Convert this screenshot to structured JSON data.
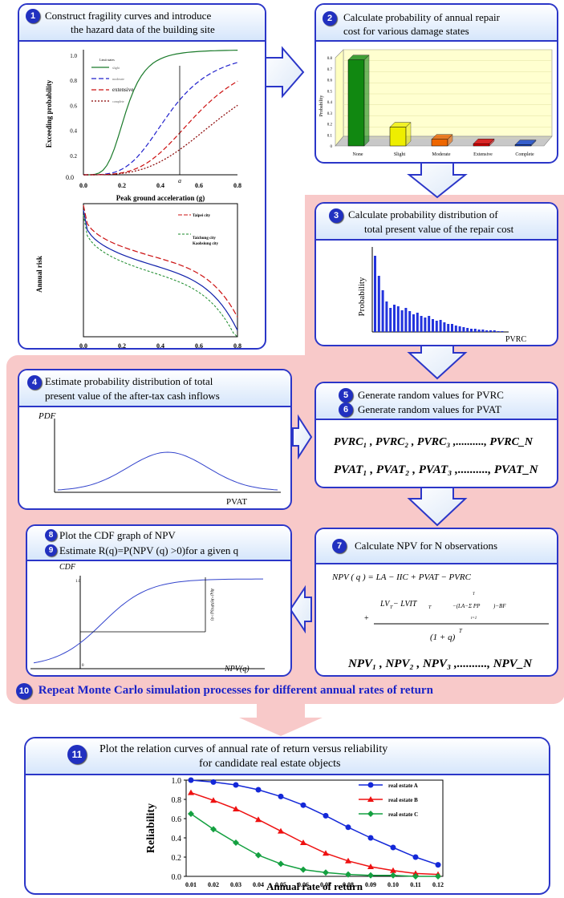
{
  "steps": {
    "s1": {
      "num": "1",
      "line1": "Construct fragility curves and introduce",
      "line2": "the hazard data of the building site"
    },
    "s2": {
      "num": "2",
      "line1": "Calculate probability of annual repair",
      "line2": "cost for various damage states"
    },
    "s3": {
      "num": "3",
      "line1": "Calculate probability distribution of",
      "line2": "total present value of the repair cost"
    },
    "s4": {
      "num": "4",
      "line1": "Estimate probability distribution of total",
      "line2": "present value of the after-tax cash inflows"
    },
    "s5": {
      "num": "5",
      "text": "Generate random values for PVRC"
    },
    "s6": {
      "num": "6",
      "text": "Generate random values for PVAT"
    },
    "s7": {
      "num": "7",
      "text": "Calculate NPV for N observations"
    },
    "s8": {
      "num": "8",
      "text": "Plot the CDF graph of NPV"
    },
    "s9": {
      "num": "9",
      "text": "Estimate R(q)=P(NPV (q) >0)for a given q"
    },
    "s10": {
      "num": "10",
      "text": "Repeat Monte Carlo simulation processes for different annual rates of return"
    },
    "s11": {
      "num": "11",
      "line1": "Plot the relation curves of annual rate of return versus reliability",
      "line2": "for candidate real estate objects"
    }
  },
  "fragility": {
    "ylabel": "Exceeding probability",
    "xlabel": "Peak ground acceleration (g)",
    "xticks": [
      "0.0",
      "0.2",
      "0.4",
      "0.6",
      "0.8"
    ],
    "yticks": [
      "1.0",
      "0.8",
      "0.6",
      "0.4",
      "0.2",
      "0.0"
    ],
    "legend_title": "Limit states",
    "legend": [
      "slight",
      "moderate",
      "extensive",
      "complete"
    ],
    "ai_label": "a",
    "colors": {
      "slight": "#1a7a2a",
      "moderate": "#2020cc",
      "extensive": "#cc1010",
      "complete": "#880000"
    }
  },
  "hazard": {
    "ylabel": "Annual risk",
    "xlabel": "Peak ground acceleration (g)",
    "xticks": [
      "0.0",
      "0.2",
      "0.4",
      "0.6",
      "0.8"
    ],
    "legend": [
      "Taipei city",
      "Taichung city",
      "Kaohsiung city"
    ]
  },
  "chart_data": [
    {
      "type": "bar",
      "title": "",
      "ylabel": "Probability",
      "categories": [
        "None",
        "Slight",
        "Moderate",
        "Extensive",
        "Complete"
      ],
      "values": [
        0.78,
        0.17,
        0.06,
        0.02,
        0.01
      ],
      "ylim": [
        0,
        0.8
      ],
      "yticks": [
        "0",
        "0.1",
        "0.2",
        "0.3",
        "0.4",
        "0.5",
        "0.6",
        "0.7",
        "0.8"
      ],
      "colors": [
        "#118811",
        "#eeee00",
        "#ee6600",
        "#dd0000",
        "#1144cc"
      ]
    },
    {
      "type": "bar",
      "ylabel": "Probability",
      "xlabel": "PVRC",
      "values": [
        0.95,
        0.7,
        0.52,
        0.38,
        0.3,
        0.34,
        0.32,
        0.27,
        0.3,
        0.26,
        0.22,
        0.24,
        0.2,
        0.18,
        0.2,
        0.16,
        0.14,
        0.15,
        0.12,
        0.1,
        0.1,
        0.08,
        0.07,
        0.06,
        0.05,
        0.04,
        0.04,
        0.03,
        0.03,
        0.02,
        0.02,
        0.02,
        0.01,
        0.01
      ]
    },
    {
      "type": "line",
      "ylabel": "PDF",
      "xlabel": "PVAT",
      "description_values": {
        "x": [
          0,
          1,
          2,
          3,
          4,
          5,
          6,
          7,
          8,
          9,
          10
        ],
        "y": [
          0.0,
          0.02,
          0.08,
          0.3,
          0.75,
          1.0,
          0.75,
          0.3,
          0.08,
          0.02,
          0.0
        ]
      }
    },
    {
      "type": "line",
      "ylabel": "CDF",
      "xlabel": "NPV(q)",
      "yticks": [
        "1.0",
        "0"
      ],
      "annot": "R(q)=P(NPV(q)>0)"
    },
    {
      "type": "line",
      "xlabel": "Annual rate of return",
      "ylabel": "Reliability",
      "x": [
        0.01,
        0.02,
        0.03,
        0.04,
        0.05,
        0.06,
        0.07,
        0.08,
        0.09,
        0.1,
        0.11,
        0.12
      ],
      "xticks": [
        "0.01",
        "0.02",
        "0.03",
        "0.04",
        "0.05",
        "0.06",
        "0.07",
        "0.08",
        "0.09",
        "0.10",
        "0.11",
        "0.12"
      ],
      "yticks": [
        "0.0",
        "0.2",
        "0.4",
        "0.6",
        "0.8",
        "1.0"
      ],
      "ylim": [
        0,
        1
      ],
      "legend_position": "top-right",
      "series": [
        {
          "name": "real estate A",
          "color": "#1428d8",
          "marker": "circle",
          "values": [
            1.0,
            0.98,
            0.95,
            0.9,
            0.83,
            0.74,
            0.63,
            0.51,
            0.4,
            0.3,
            0.2,
            0.12
          ]
        },
        {
          "name": "real estate B",
          "color": "#ee1111",
          "marker": "triangle",
          "values": [
            0.87,
            0.79,
            0.7,
            0.59,
            0.47,
            0.35,
            0.24,
            0.16,
            0.1,
            0.06,
            0.03,
            0.02
          ]
        },
        {
          "name": "real estate C",
          "color": "#14a040",
          "marker": "diamond",
          "values": [
            0.65,
            0.49,
            0.35,
            0.22,
            0.13,
            0.07,
            0.04,
            0.02,
            0.01,
            0.01,
            0.0,
            0.0
          ]
        }
      ]
    }
  ],
  "npv": {
    "eq1": "NPV ( q ) = LA − IIC + PVAT − PVRC",
    "num_left": "LV",
    "num_left_sub": "T",
    "num_mid": " − LVIT",
    "num_mid_sub": "T",
    "big_sum": "−(LA−Σ PP",
    "big_sum_tail": ")−BF",
    "sum_top": "T",
    "sum_bot": "t=1",
    "denom": "(1 + q)",
    "denom_sup": "T",
    "plus": "+",
    "list": "NPV₁ , NPV₂ , NPV₃ ,.........., NPV_N"
  },
  "pv": {
    "pvrc": "PVRC₁ , PVRC₂ , PVRC₃ ,.........., PVRC_N",
    "pvat": "PVAT₁ , PVAT₂ , PVAT₃ ,.........., PVAT_N"
  }
}
